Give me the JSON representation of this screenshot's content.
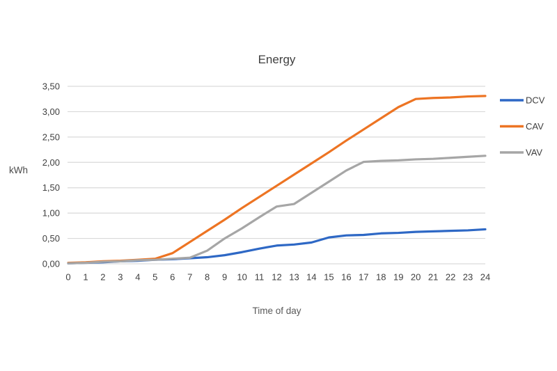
{
  "chart": {
    "title": "Energy",
    "y_axis_label": "kWh",
    "x_axis_label": "Time of day"
  },
  "colors": {
    "dcv_blue": "#2e68c5",
    "cav_orange": "#ed7423",
    "vav_gray": "#a6a6a6",
    "gridline": "#d9d9d9",
    "tick_text": "#404040",
    "legend_text": "#404040",
    "background": "#ffffff"
  },
  "chart_data": {
    "type": "line",
    "title": "Energy",
    "xlabel": "Time of day",
    "ylabel": "kWh",
    "x": [
      0,
      1,
      2,
      3,
      4,
      5,
      6,
      7,
      8,
      9,
      10,
      11,
      12,
      13,
      14,
      15,
      16,
      17,
      18,
      19,
      20,
      21,
      22,
      23,
      24
    ],
    "y_tick_labels": [
      "0,00",
      "0,50",
      "1,00",
      "1,50",
      "2,00",
      "2,50",
      "3,00",
      "3,50"
    ],
    "y_tick_values": [
      0,
      0.5,
      1.0,
      1.5,
      2.0,
      2.5,
      3.0,
      3.5
    ],
    "ylim": [
      0,
      3.5
    ],
    "grid": "horizontal",
    "legend_position": "right",
    "series": [
      {
        "name": "DCV",
        "color": "#2e68c5",
        "values": [
          0.01,
          0.02,
          0.03,
          0.05,
          0.06,
          0.08,
          0.09,
          0.11,
          0.13,
          0.17,
          0.23,
          0.3,
          0.36,
          0.38,
          0.42,
          0.52,
          0.56,
          0.57,
          0.6,
          0.61,
          0.63,
          0.64,
          0.65,
          0.66,
          0.68
        ]
      },
      {
        "name": "CAV",
        "color": "#ed7423",
        "values": [
          0.02,
          0.03,
          0.05,
          0.06,
          0.08,
          0.1,
          0.21,
          0.43,
          0.65,
          0.87,
          1.1,
          1.32,
          1.54,
          1.76,
          1.98,
          2.2,
          2.43,
          2.65,
          2.87,
          3.09,
          3.25,
          3.27,
          3.28,
          3.3,
          3.31
        ]
      },
      {
        "name": "VAV",
        "color": "#a6a6a6",
        "values": [
          0.01,
          0.02,
          0.04,
          0.05,
          0.07,
          0.08,
          0.1,
          0.12,
          0.26,
          0.5,
          0.7,
          0.92,
          1.13,
          1.18,
          1.4,
          1.62,
          1.84,
          2.01,
          2.03,
          2.04,
          2.06,
          2.07,
          2.09,
          2.11,
          2.13
        ]
      }
    ]
  }
}
